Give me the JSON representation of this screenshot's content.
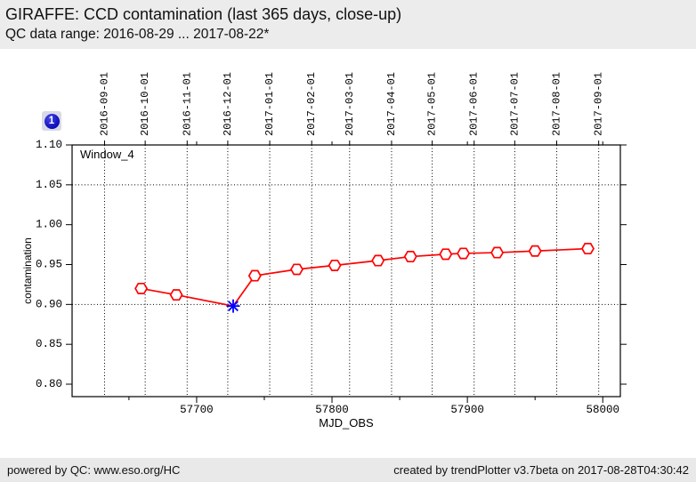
{
  "header": {
    "title": "GIRAFFE: CCD contamination (last 365 days, close-up)",
    "subtitle": "QC data range: 2016-08-29 ... 2017-08-22*"
  },
  "badge": {
    "label": "1",
    "color": "#1212c4"
  },
  "footer": {
    "left": "powered by QC: www.eso.org/HC",
    "right": "created by trendPlotter v3.7beta on 2017-08-28T04:30:42"
  },
  "chart_data": {
    "type": "line",
    "title": "GIRAFFE: CCD contamination (last 365 days, close-up)",
    "window_label": "Window_4",
    "xlabel": "MJD_OBS",
    "ylabel": "contamination",
    "xlim": [
      57608,
      58013
    ],
    "ylim": [
      0.7844,
      1.1
    ],
    "x_ticks_major": [
      57700,
      57800,
      57900,
      58000
    ],
    "x_ticks_minor": [
      57650,
      57750,
      57850,
      57950
    ],
    "y_ticks": [
      0.8,
      0.85,
      0.9,
      0.95,
      1.0,
      1.05,
      1.1
    ],
    "grid_y_values": [
      0.9,
      1.05
    ],
    "grid": true,
    "legend_position": "none",
    "top_axis_ticks": [
      {
        "mjd": 57632,
        "label": "2016-09-01"
      },
      {
        "mjd": 57662,
        "label": "2016-10-01"
      },
      {
        "mjd": 57693,
        "label": "2016-11-01"
      },
      {
        "mjd": 57723,
        "label": "2016-12-01"
      },
      {
        "mjd": 57754,
        "label": "2017-01-01"
      },
      {
        "mjd": 57785,
        "label": "2017-02-01"
      },
      {
        "mjd": 57813,
        "label": "2017-03-01"
      },
      {
        "mjd": 57844,
        "label": "2017-04-01"
      },
      {
        "mjd": 57874,
        "label": "2017-05-01"
      },
      {
        "mjd": 57905,
        "label": "2017-06-01"
      },
      {
        "mjd": 57935,
        "label": "2017-07-01"
      },
      {
        "mjd": 57966,
        "label": "2017-08-01"
      },
      {
        "mjd": 57997,
        "label": "2017-09-01"
      }
    ],
    "series": [
      {
        "name": "contamination Window_4",
        "color": "#ff0000",
        "marker": "open-hexagon",
        "x": [
          57659,
          57685,
          57727,
          57743,
          57774,
          57802,
          57834,
          57858,
          57884,
          57897,
          57922,
          57950,
          57989
        ],
        "y": [
          0.92,
          0.912,
          0.898,
          0.936,
          0.944,
          0.949,
          0.955,
          0.96,
          0.963,
          0.964,
          0.965,
          0.967,
          0.97
        ]
      }
    ],
    "highlight_point": {
      "x": 57727,
      "y": 0.898,
      "marker": "asterisk",
      "color": "#0000ff"
    }
  }
}
